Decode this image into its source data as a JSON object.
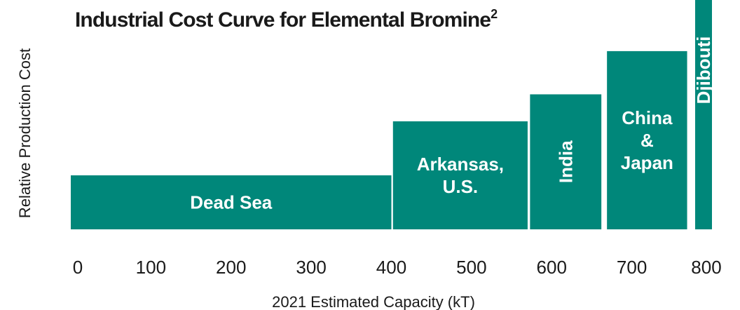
{
  "chart_data": {
    "type": "bar",
    "title": "Industrial Cost Curve for Elemental Bromine",
    "title_superscript": "2",
    "xlabel": "2021 Estimated Capacity (kT)",
    "ylabel": "Relative Production Cost",
    "xlim": [
      0,
      800
    ],
    "x_ticks": [
      "0",
      "100",
      "200",
      "300",
      "400",
      "500",
      "600",
      "700",
      "800"
    ],
    "grid": false,
    "bar_color": "#00877A",
    "series": [
      {
        "label_lines": [
          "Dead Sea"
        ],
        "x_start": 0,
        "x_end": 400,
        "relative_cost": 1.0,
        "label_orientation": "horizontal"
      },
      {
        "label_lines": [
          "Arkansas,",
          "U.S."
        ],
        "x_start": 402,
        "x_end": 570,
        "relative_cost": 2.0,
        "label_orientation": "horizontal"
      },
      {
        "label_lines": [
          "India"
        ],
        "x_start": 573,
        "x_end": 662,
        "relative_cost": 2.5,
        "label_orientation": "vertical"
      },
      {
        "label_lines": [
          "China",
          "&",
          "Japan"
        ],
        "x_start": 669,
        "x_end": 769,
        "relative_cost": 3.3,
        "label_orientation": "horizontal"
      },
      {
        "label_lines": [
          "Djibouti"
        ],
        "x_start": 779,
        "x_end": 800,
        "relative_cost": 4.3,
        "label_orientation": "vertical"
      }
    ]
  }
}
